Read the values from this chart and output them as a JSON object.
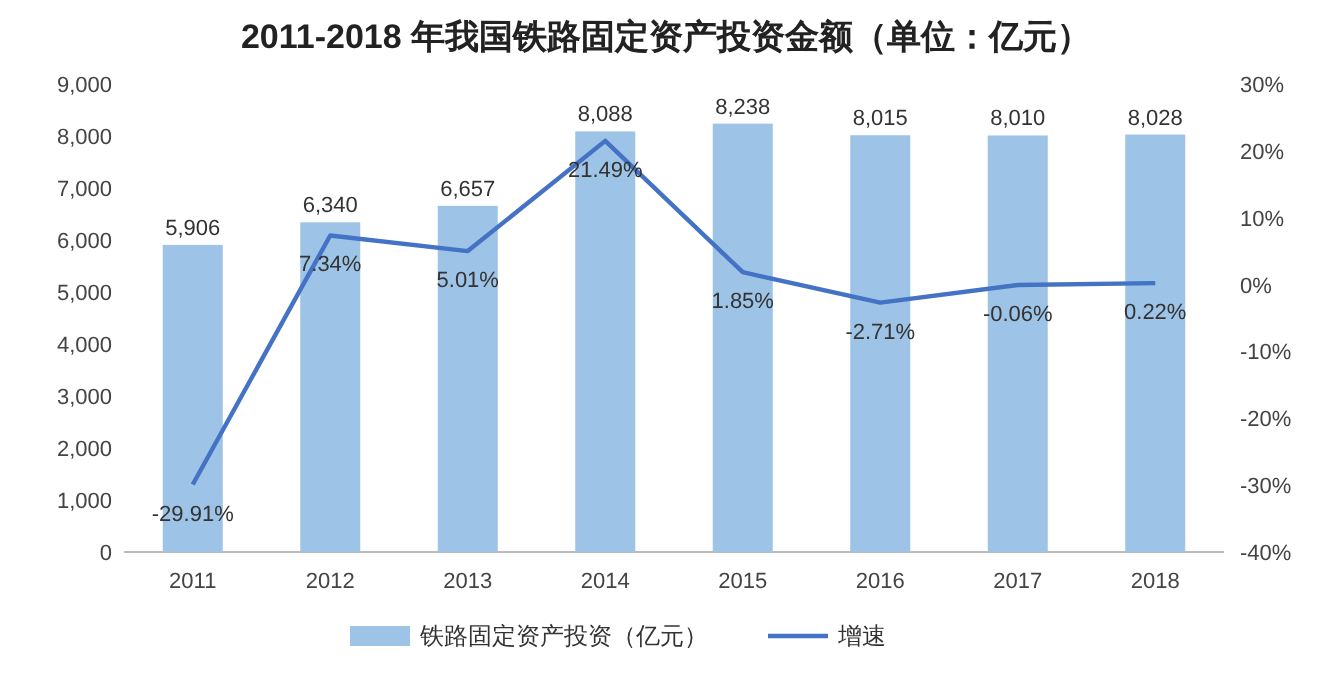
{
  "chart_data": {
    "type": "bar",
    "title": "2011-2018 年我国铁路固定资产投资金额（单位：亿元）",
    "categories": [
      "2011",
      "2012",
      "2013",
      "2014",
      "2015",
      "2016",
      "2017",
      "2018"
    ],
    "series": [
      {
        "name": "铁路固定资产投资（亿元）",
        "color": "#9dc3e6",
        "values": [
          5906,
          6340,
          6657,
          8088,
          8238,
          8015,
          8010,
          8028
        ],
        "value_labels": [
          "5,906",
          "6,340",
          "6,657",
          "8,088",
          "8,238",
          "8,015",
          "8,010",
          "8,028"
        ]
      },
      {
        "name": "增速",
        "type": "line",
        "axis": "y2",
        "color": "#4472c4",
        "values": [
          -29.91,
          7.34,
          5.01,
          21.49,
          1.85,
          -2.71,
          -0.06,
          0.22
        ],
        "value_labels": [
          "-29.91%",
          "7.34%",
          "5.01%",
          "21.49%",
          "1.85%",
          "-2.71%",
          "-0.06%",
          "0.22%"
        ]
      }
    ],
    "ylim": [
      0,
      9000
    ],
    "yticks": [
      {
        "value": 0,
        "label": "0"
      },
      {
        "value": 1000,
        "label": "1,000"
      },
      {
        "value": 2000,
        "label": "2,000"
      },
      {
        "value": 3000,
        "label": "3,000"
      },
      {
        "value": 4000,
        "label": "4,000"
      },
      {
        "value": 5000,
        "label": "5,000"
      },
      {
        "value": 6000,
        "label": "6,000"
      },
      {
        "value": 7000,
        "label": "7,000"
      },
      {
        "value": 8000,
        "label": "8,000"
      },
      {
        "value": 9000,
        "label": "9,000"
      }
    ],
    "y2lim": [
      -40,
      30
    ],
    "y2ticks": [
      {
        "value": -40,
        "label": "-40%"
      },
      {
        "value": -30,
        "label": "-30%"
      },
      {
        "value": -20,
        "label": "-20%"
      },
      {
        "value": -10,
        "label": "-10%"
      },
      {
        "value": 0,
        "label": "0%"
      },
      {
        "value": 10,
        "label": "10%"
      },
      {
        "value": 20,
        "label": "20%"
      },
      {
        "value": 30,
        "label": "30%"
      }
    ],
    "legend": "bottom",
    "grid": false,
    "marker": "none",
    "line_style": "solid"
  }
}
